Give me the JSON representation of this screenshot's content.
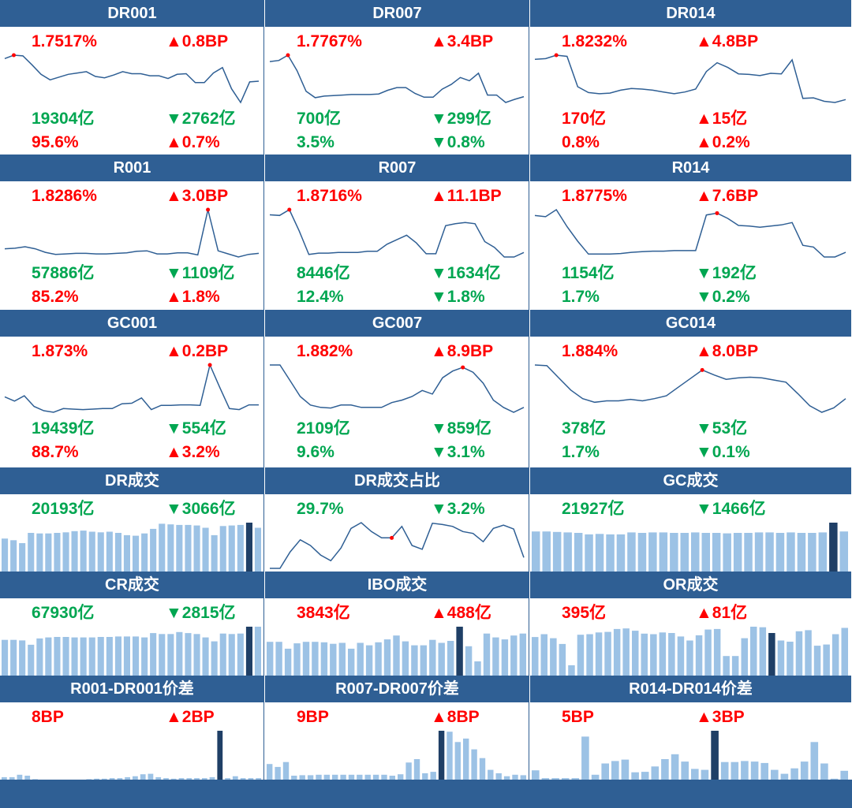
{
  "colors": {
    "header_bg": "#2f5f94",
    "line": "#2f5f94",
    "bar": "#9cc2e5",
    "bar_highlight": "#1f3f66",
    "red": "#ff0000",
    "green": "#00a651"
  },
  "panels": [
    {
      "title": "DR001",
      "rate": "1.7517%",
      "rate_chg": "▲0.8BP",
      "rate_color": "red",
      "chg_color": "red",
      "vol": "19304亿",
      "vol_chg": "▼2762亿",
      "vol_color": "green",
      "vol_chg_color": "green",
      "share": "95.6%",
      "share_chg": "▲0.7%",
      "share_color": "red",
      "share_chg_color": "red"
    },
    {
      "title": "DR007",
      "rate": "1.7767%",
      "rate_chg": "▲3.4BP",
      "rate_color": "red",
      "chg_color": "red",
      "vol": "700亿",
      "vol_chg": "▼299亿",
      "vol_color": "green",
      "vol_chg_color": "green",
      "share": "3.5%",
      "share_chg": "▼0.8%",
      "share_color": "green",
      "share_chg_color": "green"
    },
    {
      "title": "DR014",
      "rate": "1.8232%",
      "rate_chg": "▲4.8BP",
      "rate_color": "red",
      "chg_color": "red",
      "vol": "170亿",
      "vol_chg": "▲15亿",
      "vol_color": "red",
      "vol_chg_color": "red",
      "share": "0.8%",
      "share_chg": "▲0.2%",
      "share_color": "red",
      "share_chg_color": "red"
    },
    {
      "title": "R001",
      "rate": "1.8286%",
      "rate_chg": "▲3.0BP",
      "rate_color": "red",
      "chg_color": "red",
      "vol": "57886亿",
      "vol_chg": "▼1109亿",
      "vol_color": "green",
      "vol_chg_color": "green",
      "share": "85.2%",
      "share_chg": "▲1.8%",
      "share_color": "red",
      "share_chg_color": "red"
    },
    {
      "title": "R007",
      "rate": "1.8716%",
      "rate_chg": "▲11.1BP",
      "rate_color": "red",
      "chg_color": "red",
      "vol": "8446亿",
      "vol_chg": "▼1634亿",
      "vol_color": "green",
      "vol_chg_color": "green",
      "share": "12.4%",
      "share_chg": "▼1.8%",
      "share_color": "green",
      "share_chg_color": "green"
    },
    {
      "title": "R014",
      "rate": "1.8775%",
      "rate_chg": "▲7.6BP",
      "rate_color": "red",
      "chg_color": "red",
      "vol": "1154亿",
      "vol_chg": "▼192亿",
      "vol_color": "green",
      "vol_chg_color": "green",
      "share": "1.7%",
      "share_chg": "▼0.2%",
      "share_color": "green",
      "share_chg_color": "green"
    },
    {
      "title": "GC001",
      "rate": "1.873%",
      "rate_chg": "▲0.2BP",
      "rate_color": "red",
      "chg_color": "red",
      "vol": "19439亿",
      "vol_chg": "▼554亿",
      "vol_color": "green",
      "vol_chg_color": "green",
      "share": "88.7%",
      "share_chg": "▲3.2%",
      "share_color": "red",
      "share_chg_color": "red"
    },
    {
      "title": "GC007",
      "rate": "1.882%",
      "rate_chg": "▲8.9BP",
      "rate_color": "red",
      "chg_color": "red",
      "vol": "2109亿",
      "vol_chg": "▼859亿",
      "vol_color": "green",
      "vol_chg_color": "green",
      "share": "9.6%",
      "share_chg": "▼3.1%",
      "share_color": "green",
      "share_chg_color": "green"
    },
    {
      "title": "GC014",
      "rate": "1.884%",
      "rate_chg": "▲8.0BP",
      "rate_color": "red",
      "chg_color": "red",
      "vol": "378亿",
      "vol_chg": "▼53亿",
      "vol_color": "green",
      "vol_chg_color": "green",
      "share": "1.7%",
      "share_chg": "▼0.1%",
      "share_color": "green",
      "share_chg_color": "green"
    },
    {
      "title": "DR成交",
      "rate": "20193亿",
      "rate_chg": "▼3066亿",
      "rate_color": "green",
      "chg_color": "green"
    },
    {
      "title": "DR成交占比",
      "rate": "29.7%",
      "rate_chg": "▼3.2%",
      "rate_color": "green",
      "chg_color": "green"
    },
    {
      "title": "GC成交",
      "rate": "21927亿",
      "rate_chg": "▼1466亿",
      "rate_color": "green",
      "chg_color": "green"
    },
    {
      "title": "CR成交",
      "rate": "67930亿",
      "rate_chg": "▼2815亿",
      "rate_color": "green",
      "chg_color": "green"
    },
    {
      "title": "IBO成交",
      "rate": "3843亿",
      "rate_chg": "▲488亿",
      "rate_color": "red",
      "chg_color": "red"
    },
    {
      "title": "OR成交",
      "rate": "395亿",
      "rate_chg": "▲81亿",
      "rate_color": "red",
      "chg_color": "red"
    },
    {
      "title": "R001-DR001价差",
      "rate": "8BP",
      "rate_chg": "▲2BP",
      "rate_color": "red",
      "chg_color": "red"
    },
    {
      "title": "R007-DR007价差",
      "rate": "9BP",
      "rate_chg": "▲8BP",
      "rate_color": "red",
      "chg_color": "red"
    },
    {
      "title": "R014-DR014价差",
      "rate": "5BP",
      "rate_chg": "▲3BP",
      "rate_color": "red",
      "chg_color": "red"
    }
  ],
  "chart_data": [
    {
      "type": "line",
      "title": "DR001",
      "values": [
        64,
        69,
        68,
        55,
        41,
        33,
        37,
        41,
        43,
        45,
        38,
        36,
        40,
        45,
        42,
        42,
        39,
        39,
        35,
        41,
        42,
        29,
        29,
        43,
        51,
        20,
        0,
        30,
        31
      ],
      "highlight_index": 1
    },
    {
      "title": "DR007",
      "type": "line",
      "values": [
        69,
        71,
        81,
        52,
        13,
        1,
        4,
        5,
        6,
        7,
        7,
        7,
        8,
        15,
        20,
        20,
        9,
        2,
        2,
        17,
        26,
        39,
        33,
        47,
        6,
        6,
        -8,
        -2,
        3
      ],
      "highlight_index": 2
    },
    {
      "title": "DR014",
      "type": "line",
      "values": [
        72,
        73,
        79,
        77,
        25,
        15,
        13,
        14,
        19,
        22,
        21,
        19,
        16,
        13,
        16,
        21,
        51,
        66,
        58,
        47,
        46,
        44,
        48,
        47,
        71,
        5,
        6,
        0,
        -2,
        3
      ],
      "highlight_index": 2
    },
    {
      "title": "R001",
      "type": "line",
      "values": [
        24,
        25,
        28,
        24,
        17,
        13,
        14,
        15,
        15,
        14,
        14,
        15,
        16,
        19,
        20,
        14,
        14,
        16,
        16,
        12,
        100,
        20,
        14,
        8,
        13,
        15
      ],
      "highlight_index": 20
    },
    {
      "title": "R007",
      "type": "line",
      "values": [
        72,
        71,
        80,
        47,
        10,
        12,
        12,
        13,
        13,
        13,
        15,
        15,
        26,
        33,
        40,
        28,
        11,
        11,
        55,
        58,
        60,
        58,
        30,
        21,
        6,
        6,
        13
      ],
      "highlight_index": 2
    },
    {
      "title": "R014",
      "type": "line",
      "values": [
        86,
        84,
        96,
        67,
        42,
        20,
        20,
        20,
        21,
        23,
        24,
        25,
        25,
        26,
        26,
        26,
        87,
        90,
        81,
        69,
        68,
        66,
        68,
        70,
        74,
        35,
        32,
        15,
        15,
        23
      ],
      "highlight_index": 17
    },
    {
      "title": "GC001",
      "type": "line",
      "values": [
        40,
        32,
        42,
        22,
        14,
        11,
        18,
        17,
        16,
        17,
        18,
        18,
        27,
        28,
        38,
        16,
        24,
        24,
        25,
        25,
        24,
        100,
        58,
        18,
        16,
        25,
        25
      ],
      "highlight_index": 21
    },
    {
      "title": "GC007",
      "type": "line",
      "values": [
        80,
        80,
        54,
        28,
        14,
        10,
        9,
        14,
        14,
        10,
        10,
        10,
        18,
        22,
        28,
        38,
        32,
        59,
        70,
        76,
        68,
        50,
        22,
        10,
        2,
        10
      ],
      "highlight_index": 19
    },
    {
      "title": "GC014",
      "type": "line",
      "values": [
        87,
        86,
        69,
        52,
        40,
        35,
        37,
        37,
        39,
        37,
        40,
        44,
        56,
        68,
        80,
        73,
        67,
        69,
        70,
        69,
        66,
        63,
        47,
        30,
        21,
        27,
        40
      ],
      "highlight_index": 14
    },
    {
      "title": "DR成交",
      "type": "bar",
      "values": [
        58,
        55,
        50,
        68,
        67,
        67,
        68,
        69,
        71,
        72,
        70,
        69,
        70,
        68,
        64,
        63,
        67,
        75,
        84,
        83,
        82,
        82,
        81,
        77,
        64,
        80,
        81,
        82,
        86,
        77
      ],
      "highlight_index": 28
    },
    {
      "title": "DR成交占比",
      "type": "line",
      "values": [
        0,
        0,
        26,
        45,
        36,
        21,
        12,
        32,
        63,
        72,
        58,
        48,
        48,
        66,
        36,
        30,
        71,
        69,
        66,
        58,
        55,
        42,
        63,
        68,
        62,
        17
      ],
      "highlight_index": 12
    },
    {
      "title": "GC成交",
      "type": "bar",
      "values": [
        82,
        82,
        81,
        80,
        79,
        76,
        77,
        76,
        76,
        80,
        79,
        80,
        80,
        79,
        79,
        80,
        79,
        79,
        78,
        79,
        79,
        80,
        80,
        79,
        80,
        79,
        79,
        80,
        100,
        82
      ],
      "highlight_index": 28
    },
    {
      "title": "CR成交",
      "type": "bar",
      "values": [
        73,
        73,
        72,
        63,
        76,
        78,
        79,
        79,
        78,
        78,
        78,
        79,
        79,
        80,
        80,
        80,
        78,
        87,
        85,
        85,
        89,
        87,
        85,
        78,
        70,
        86,
        85,
        86,
        100,
        100
      ],
      "highlight_index": 28
    },
    {
      "title": "IBO成交",
      "type": "bar",
      "values": [
        69,
        69,
        55,
        66,
        69,
        69,
        68,
        65,
        67,
        55,
        67,
        62,
        68,
        74,
        82,
        70,
        62,
        62,
        73,
        67,
        71,
        100,
        60,
        29,
        86,
        78,
        74,
        82,
        86
      ],
      "highlight_index": 21
    },
    {
      "title": "OR成交",
      "type": "bar",
      "values": [
        67,
        72,
        65,
        55,
        18,
        71,
        72,
        75,
        76,
        81,
        82,
        78,
        73,
        72,
        75,
        74,
        68,
        61,
        70,
        80,
        81,
        34,
        34,
        65,
        85,
        84,
        74,
        61,
        59,
        77,
        79,
        52,
        54,
        72,
        83
      ],
      "highlight_index": 26
    },
    {
      "title": "R001-DR001价差",
      "type": "bar",
      "values": [
        5,
        5,
        10,
        8,
        1,
        0,
        0,
        0,
        0,
        0,
        0,
        1,
        2,
        2,
        3,
        3,
        5,
        7,
        11,
        12,
        5,
        3,
        2,
        3,
        3,
        3,
        3,
        5,
        100,
        3,
        7,
        3,
        3,
        3
      ],
      "highlight_index": 28
    },
    {
      "title": "R007-DR007价差",
      "type": "bar",
      "values": [
        32,
        26,
        36,
        8,
        9,
        9,
        10,
        10,
        10,
        10,
        10,
        10,
        10,
        10,
        10,
        8,
        11,
        35,
        42,
        13,
        16,
        100,
        98,
        77,
        84,
        62,
        44,
        20,
        13,
        7,
        10,
        9
      ],
      "highlight_index": 21
    },
    {
      "title": "R014-DR014价差",
      "type": "bar",
      "values": [
        19,
        3,
        3,
        3,
        3,
        88,
        10,
        33,
        38,
        41,
        15,
        16,
        27,
        42,
        52,
        37,
        22,
        20,
        100,
        36,
        36,
        38,
        37,
        34,
        20,
        12,
        23,
        37,
        77,
        33,
        2,
        18
      ],
      "highlight_index": 18
    }
  ]
}
